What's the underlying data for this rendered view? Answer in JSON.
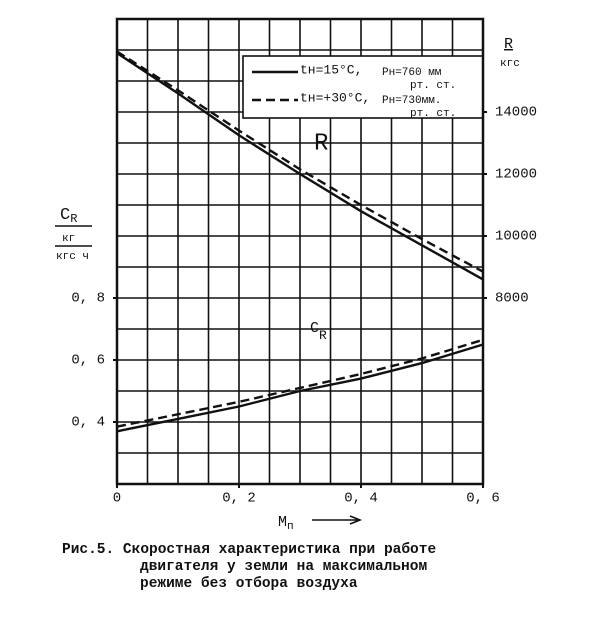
{
  "chart_data": {
    "type": "line",
    "xlim": [
      0,
      0.6
    ],
    "xticks": [
      0,
      {
        "value": 0.2,
        "label": "0, 2"
      },
      {
        "value": 0.4,
        "label": "0, 4"
      },
      {
        "value": 0.6,
        "label": "0, 6"
      }
    ],
    "ylim": [
      0.2,
      1.7
    ],
    "yticks": [
      {
        "value": 0.4,
        "label": "0, 4"
      },
      {
        "value": 0.6,
        "label": "0, 6"
      },
      {
        "value": 0.8,
        "label": "0, 8"
      }
    ],
    "y2lim": [
      2000,
      17000
    ],
    "y2ticks": [
      8000,
      10000,
      12000,
      14000
    ],
    "grid": true,
    "xlabel": {
      "symbol": "M",
      "subscript": "п"
    },
    "ylabel": {
      "symbol": "C",
      "subscript": "R",
      "unit_top": "кг",
      "unit_bottom": "кгс ч"
    },
    "y2label": {
      "symbol": "R",
      "unit": "кгс"
    },
    "x": [
      0,
      0.1,
      0.2,
      0.3,
      0.4,
      0.5,
      0.6
    ],
    "series": [
      {
        "style": "solid",
        "axis": "y2",
        "values": [
          15900,
          14600,
          13250,
          12000,
          10800,
          9700,
          8600
        ]
      },
      {
        "style": "dashed",
        "axis": "y2",
        "values": [
          15950,
          14700,
          13400,
          12150,
          11000,
          9900,
          8850
        ]
      },
      {
        "style": "solid",
        "values": [
          0.37,
          0.41,
          0.45,
          0.5,
          0.54,
          0.59,
          0.65
        ]
      },
      {
        "style": "dashed",
        "values": [
          0.385,
          0.425,
          0.465,
          0.51,
          0.555,
          0.605,
          0.665
        ]
      }
    ],
    "color": "#111111",
    "legend": [
      {
        "style": "solid",
        "t": "tн=15°C,",
        "p": "Pн=760 мм",
        "unit": "рт. ст."
      },
      {
        "style": "dashed",
        "t": "tн=+30°C,",
        "p": "Pн=730мм.",
        "unit": "рт. ст."
      }
    ],
    "annotations": [
      {
        "main": "R"
      },
      {
        "main": "C",
        "sub": "R"
      }
    ],
    "caption": [
      "Рис.5. Скоростная характеристика при работе",
      "двигателя у земли на максимальном",
      "режиме без отбора воздуха"
    ]
  }
}
